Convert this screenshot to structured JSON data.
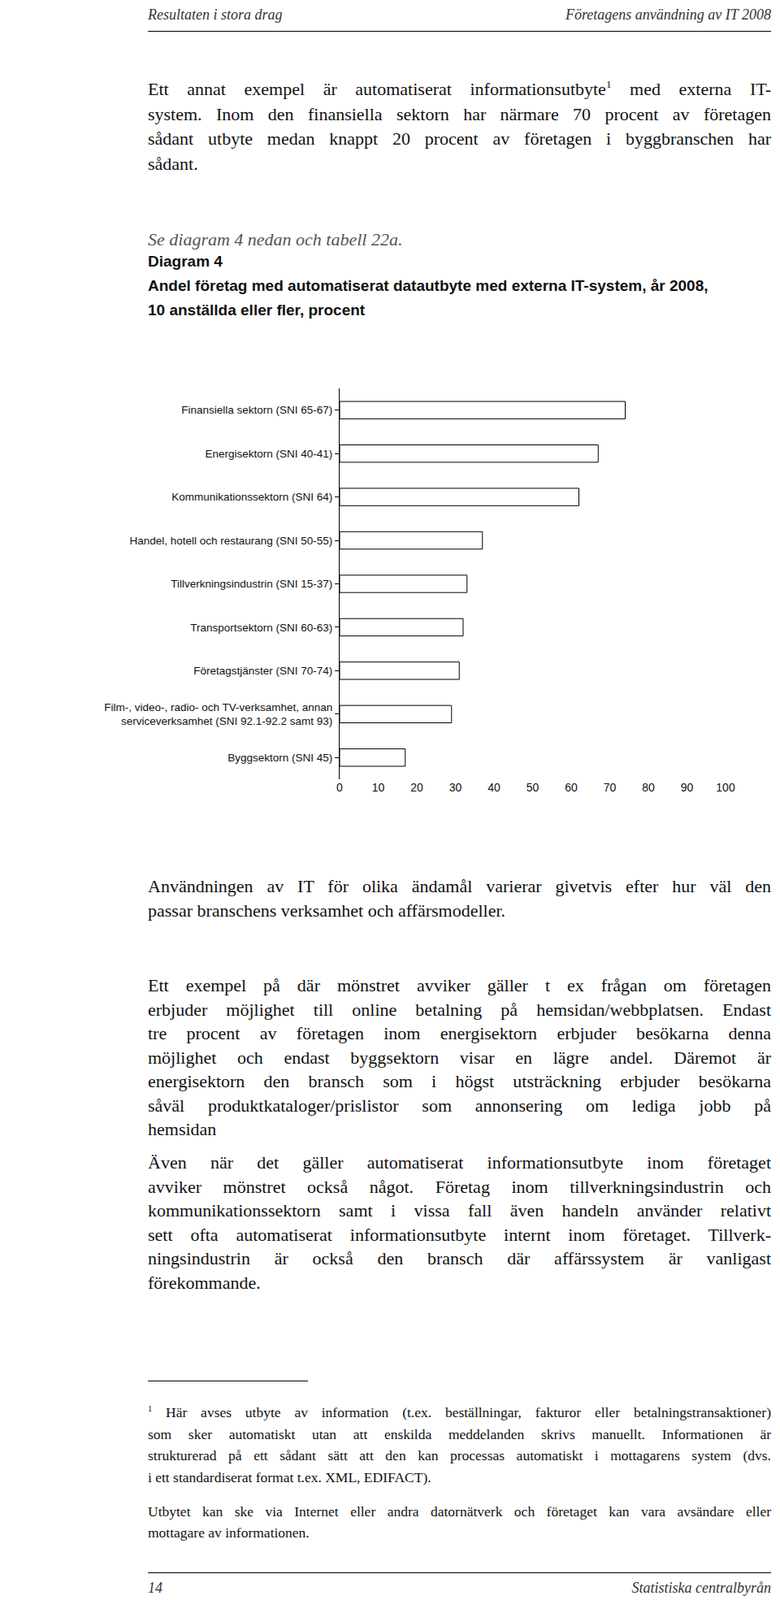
{
  "header": {
    "left": "Resultaten i stora drag",
    "right": "Företagens användning av IT 2008"
  },
  "intro": [
    [
      "Ett annat exempel är automatiserat informationsutbyte",
      {
        "sup": "1"
      },
      " med externa IT-"
    ],
    "system. Inom den finansiella sektorn har närmare 70 procent av företagen",
    "sådant utbyte medan knappt 20 procent av företagen i byggbranschen har",
    "sådant."
  ],
  "reference": "Se diagram 4 nedan och tabell 22a.",
  "chart_data": {
    "type": "bar",
    "orientation": "horizontal",
    "title": "Diagram 4\nAndel företag med automatiserat datautbyte med externa IT-system, år 2008,\n10 anställda eller fler, procent",
    "categories": [
      "Finansiella sektorn (SNI 65-67)",
      "Energisektorn (SNI 40-41)",
      "Kommunikationssektorn (SNI 64)",
      "Handel, hotell och restaurang (SNI 50-55)",
      "Tillverkningsindustrin (SNI 15-37)",
      "Transportsektorn (SNI 60-63)",
      "Företagstjänster (SNI 70-74)",
      "Film-, video-, radio- och TV-verksamhet, annan\nserviceverksamhet (SNI 92.1-92.2 samt 93)",
      "Byggsektorn (SNI 45)"
    ],
    "values": [
      74,
      67,
      62,
      37,
      33,
      32,
      31,
      29,
      17
    ],
    "color": "#ffffff",
    "xlim": [
      0,
      100
    ],
    "xticks": [
      0,
      10,
      20,
      30,
      40,
      50,
      60,
      70,
      80,
      90,
      100
    ],
    "grid": false
  },
  "body": [
    [
      "Användningen av IT för olika ändamål varierar givetvis efter hur väl den",
      "passar branschens verksamhet och affärsmodeller."
    ],
    [
      "Ett exempel på där mönstret avviker gäller t ex frågan om företagen",
      "erbjuder möjlighet till online betalning på hemsidan/webbplatsen. Endast",
      "tre procent av företagen inom energisektorn erbjuder besökarna denna",
      "möjlighet och endast byggsektorn visar en lägre andel. Däremot är",
      "energisektorn den bransch som i högst utsträckning erbjuder besökarna",
      "såväl produktkataloger/prislistor som annonsering om lediga jobb på",
      "hemsidan"
    ],
    [
      "Även när det gäller automatiserat informationsutbyte inom företaget",
      "avviker mönstret också något. Företag inom tillverkningsindustrin och",
      "kommunikationssektorn samt i vissa fall även handeln använder relativt",
      "sett ofta automatiserat informationsutbyte internt inom företaget. Tillverk-",
      "ningsindustrin är också den bransch där affärssystem är vanligast",
      "förekommande."
    ]
  ],
  "footnote": [
    [
      {
        "sup": "1"
      },
      " Här avses utbyte av information (t.ex. beställningar, fakturor eller betalningstransaktioner)"
    ],
    "som sker automatiskt utan att enskilda meddelanden skrivs manuellt. Informationen är",
    "strukturerad på ett sådant sätt att den kan processas automatiskt i mottagarens system (dvs.",
    "i ett standardiserat format t.ex. XML, EDIFACT)."
  ],
  "footnote_extra": [
    "Utbytet kan ske via Internet eller andra datornätverk och företaget kan vara avsändare eller",
    "mottagare av informationen."
  ],
  "footer": {
    "page": "14",
    "publisher": "Statistiska centralbyrån"
  }
}
